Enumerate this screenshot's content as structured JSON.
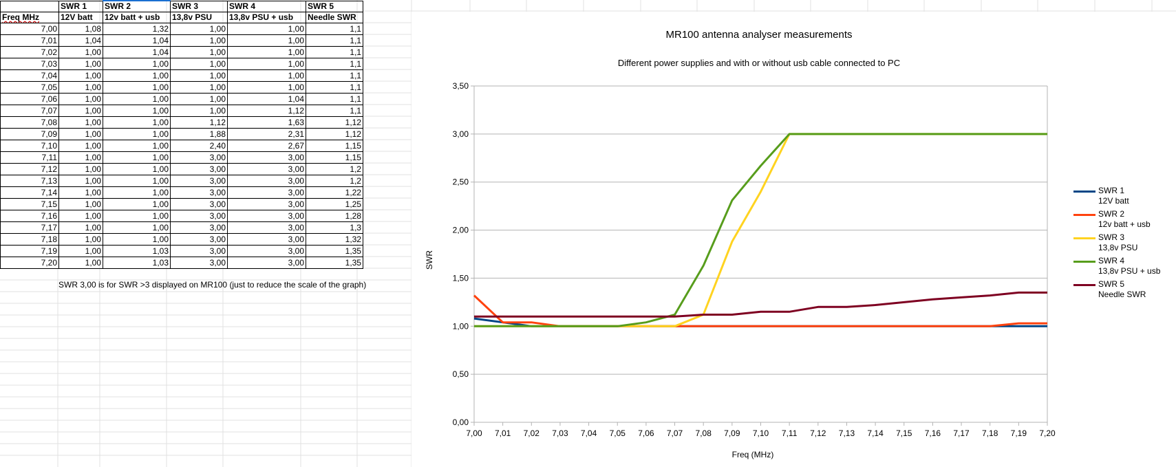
{
  "table": {
    "headers": [
      [
        "",
        "Freq MHz"
      ],
      [
        "SWR 1",
        "12V batt"
      ],
      [
        "SWR 2",
        "12v batt + usb"
      ],
      [
        "SWR 3",
        "13,8v PSU"
      ],
      [
        "SWR 4",
        "13,8v PSU + usb"
      ],
      [
        "SWR 5",
        "Needle SWR"
      ]
    ],
    "rows": [
      [
        "7,00",
        "1,08",
        "1,32",
        "1,00",
        "1,00",
        "1,1"
      ],
      [
        "7,01",
        "1,04",
        "1,04",
        "1,00",
        "1,00",
        "1,1"
      ],
      [
        "7,02",
        "1,00",
        "1,04",
        "1,00",
        "1,00",
        "1,1"
      ],
      [
        "7,03",
        "1,00",
        "1,00",
        "1,00",
        "1,00",
        "1,1"
      ],
      [
        "7,04",
        "1,00",
        "1,00",
        "1,00",
        "1,00",
        "1,1"
      ],
      [
        "7,05",
        "1,00",
        "1,00",
        "1,00",
        "1,00",
        "1,1"
      ],
      [
        "7,06",
        "1,00",
        "1,00",
        "1,00",
        "1,04",
        "1,1"
      ],
      [
        "7,07",
        "1,00",
        "1,00",
        "1,00",
        "1,12",
        "1,1"
      ],
      [
        "7,08",
        "1,00",
        "1,00",
        "1,12",
        "1,63",
        "1,12"
      ],
      [
        "7,09",
        "1,00",
        "1,00",
        "1,88",
        "2,31",
        "1,12"
      ],
      [
        "7,10",
        "1,00",
        "1,00",
        "2,40",
        "2,67",
        "1,15"
      ],
      [
        "7,11",
        "1,00",
        "1,00",
        "3,00",
        "3,00",
        "1,15"
      ],
      [
        "7,12",
        "1,00",
        "1,00",
        "3,00",
        "3,00",
        "1,2"
      ],
      [
        "7,13",
        "1,00",
        "1,00",
        "3,00",
        "3,00",
        "1,2"
      ],
      [
        "7,14",
        "1,00",
        "1,00",
        "3,00",
        "3,00",
        "1,22"
      ],
      [
        "7,15",
        "1,00",
        "1,00",
        "3,00",
        "3,00",
        "1,25"
      ],
      [
        "7,16",
        "1,00",
        "1,00",
        "3,00",
        "3,00",
        "1,28"
      ],
      [
        "7,17",
        "1,00",
        "1,00",
        "3,00",
        "3,00",
        "1,3"
      ],
      [
        "7,18",
        "1,00",
        "1,00",
        "3,00",
        "3,00",
        "1,32"
      ],
      [
        "7,19",
        "1,00",
        "1,03",
        "3,00",
        "3,00",
        "1,35"
      ],
      [
        "7,20",
        "1,00",
        "1,03",
        "3,00",
        "3,00",
        "1,35"
      ]
    ],
    "note": "SWR 3,00 is for SWR >3 displayed on MR100 (just to reduce the scale of the graph)"
  },
  "chart_data": {
    "type": "line",
    "title": "MR100 antenna analyser measurements",
    "subtitle": "Different power supplies and with or without usb cable connected to PC",
    "xlabel": "Freq (MHz)",
    "ylabel": "SWR",
    "ylim": [
      0,
      3.5
    ],
    "ytick_step": 0.5,
    "grid": true,
    "legend": "right",
    "x": [
      7.0,
      7.01,
      7.02,
      7.03,
      7.04,
      7.05,
      7.06,
      7.07,
      7.08,
      7.09,
      7.1,
      7.11,
      7.12,
      7.13,
      7.14,
      7.15,
      7.16,
      7.17,
      7.18,
      7.19,
      7.2
    ],
    "x_tick_labels": [
      "7,00",
      "7,01",
      "7,02",
      "7,03",
      "7,04",
      "7,05",
      "7,06",
      "7,07",
      "7,08",
      "7,09",
      "7,10",
      "7,11",
      "7,12",
      "7,13",
      "7,14",
      "7,15",
      "7,16",
      "7,17",
      "7,18",
      "7,19",
      "7,20"
    ],
    "y_tick_labels": [
      "0,00",
      "0,50",
      "1,00",
      "1,50",
      "2,00",
      "2,50",
      "3,00",
      "3,50"
    ],
    "series": [
      {
        "name": "SWR 1",
        "name2": "12V batt",
        "color": "#004586",
        "values": [
          1.08,
          1.04,
          1.0,
          1.0,
          1.0,
          1.0,
          1.0,
          1.0,
          1.0,
          1.0,
          1.0,
          1.0,
          1.0,
          1.0,
          1.0,
          1.0,
          1.0,
          1.0,
          1.0,
          1.0,
          1.0
        ]
      },
      {
        "name": "SWR 2",
        "name2": "12v batt + usb",
        "color": "#ff420e",
        "values": [
          1.32,
          1.04,
          1.04,
          1.0,
          1.0,
          1.0,
          1.0,
          1.0,
          1.0,
          1.0,
          1.0,
          1.0,
          1.0,
          1.0,
          1.0,
          1.0,
          1.0,
          1.0,
          1.0,
          1.03,
          1.03
        ]
      },
      {
        "name": "SWR 3",
        "name2": "13,8v PSU",
        "color": "#ffd320",
        "values": [
          1.0,
          1.0,
          1.0,
          1.0,
          1.0,
          1.0,
          1.0,
          1.0,
          1.12,
          1.88,
          2.4,
          3.0,
          3.0,
          3.0,
          3.0,
          3.0,
          3.0,
          3.0,
          3.0,
          3.0,
          3.0
        ]
      },
      {
        "name": "SWR 4",
        "name2": "13,8v PSU + usb",
        "color": "#579d1c",
        "values": [
          1.0,
          1.0,
          1.0,
          1.0,
          1.0,
          1.0,
          1.04,
          1.12,
          1.63,
          2.31,
          2.67,
          3.0,
          3.0,
          3.0,
          3.0,
          3.0,
          3.0,
          3.0,
          3.0,
          3.0,
          3.0
        ]
      },
      {
        "name": "SWR 5",
        "name2": "Needle SWR",
        "color": "#7e0021",
        "values": [
          1.1,
          1.1,
          1.1,
          1.1,
          1.1,
          1.1,
          1.1,
          1.1,
          1.12,
          1.12,
          1.15,
          1.15,
          1.2,
          1.2,
          1.22,
          1.25,
          1.28,
          1.3,
          1.32,
          1.35,
          1.35
        ]
      }
    ]
  }
}
